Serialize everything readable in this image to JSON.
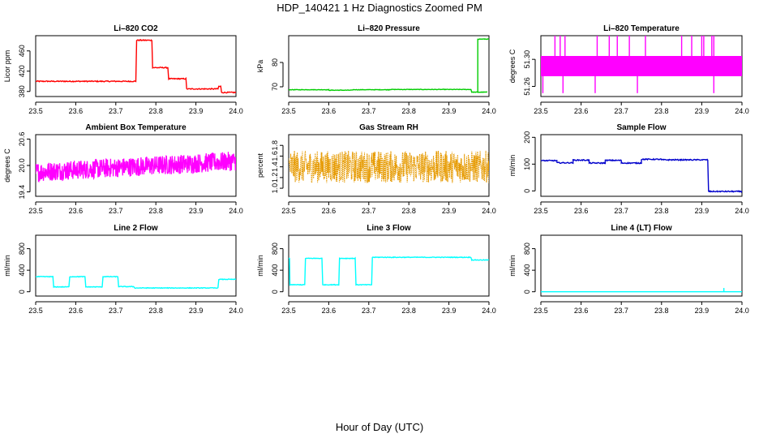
{
  "figure": {
    "title": "HDP_140421  1 Hz Diagnostics Zoomed PM",
    "xlabel": "Hour of Day (UTC)"
  },
  "chart_data": [
    {
      "id": "co2",
      "type": "line",
      "title": "Li–820 CO2",
      "ylabel": "Licor ppm",
      "color": "#ff0000",
      "xlim": [
        23.5,
        24.0
      ],
      "ylim": [
        370,
        490
      ],
      "xticks": [
        23.5,
        23.6,
        23.7,
        23.8,
        23.9,
        24.0
      ],
      "xtick_labels": [
        "23.5",
        "23.6",
        "23.7",
        "23.8",
        "23.9",
        "24.0"
      ],
      "yticks": [
        380,
        420,
        460
      ],
      "ytick_labels": [
        "380",
        "420",
        "460"
      ],
      "noise": 1.0,
      "segments": [
        {
          "x0": 23.5,
          "x1": 23.75,
          "y": 400
        },
        {
          "x0": 23.752,
          "x1": 23.79,
          "y": 481
        },
        {
          "x0": 23.792,
          "x1": 23.83,
          "y": 427
        },
        {
          "x0": 23.832,
          "x1": 23.875,
          "y": 405
        },
        {
          "x0": 23.877,
          "x1": 23.955,
          "y": 385
        },
        {
          "x0": 23.957,
          "x1": 23.962,
          "y": 390
        },
        {
          "x0": 23.964,
          "x1": 24.0,
          "y": 378
        }
      ]
    },
    {
      "id": "pressure",
      "type": "line",
      "title": "Li–820 Pressure",
      "ylabel": "kPa",
      "color": "#00cc00",
      "xlim": [
        23.5,
        24.0
      ],
      "ylim": [
        66,
        91
      ],
      "xticks": [
        23.5,
        23.6,
        23.7,
        23.8,
        23.9,
        24.0
      ],
      "xtick_labels": [
        "23.5",
        "23.6",
        "23.7",
        "23.8",
        "23.9",
        "24.0"
      ],
      "yticks": [
        70,
        80
      ],
      "ytick_labels": [
        "70",
        "80"
      ],
      "noise": 0.1,
      "segments": [
        {
          "x0": 23.5,
          "x1": 23.6,
          "y": 68.8
        },
        {
          "x0": 23.6,
          "x1": 23.66,
          "y": 68.6
        },
        {
          "x0": 23.66,
          "x1": 23.75,
          "y": 68.8
        },
        {
          "x0": 23.75,
          "x1": 23.955,
          "y": 68.9
        },
        {
          "x0": 23.957,
          "x1": 23.995,
          "y": 67.8
        },
        {
          "x0": 23.9955,
          "x1": 23.972,
          "y": 67.8
        },
        {
          "x0": 23.972,
          "x1": 24.0,
          "y": 89.6
        }
      ]
    },
    {
      "id": "licor_temp",
      "type": "line",
      "title": "Li–820 Temperature",
      "ylabel": "degrees C",
      "color": "#ff00ff",
      "xlim": [
        23.5,
        24.0
      ],
      "ylim": [
        51.245,
        51.335
      ],
      "xticks": [
        23.5,
        23.6,
        23.7,
        23.8,
        23.9,
        24.0
      ],
      "xtick_labels": [
        "23.5",
        "23.6",
        "23.7",
        "23.8",
        "23.9",
        "24.0"
      ],
      "yticks": [
        51.26,
        51.3
      ],
      "ytick_labels": [
        "51.26",
        "51.30"
      ],
      "band": {
        "low": 51.275,
        "high": 51.305
      },
      "spikes_up": [
        23.535,
        23.548,
        23.56,
        23.64,
        23.67,
        23.69,
        23.72,
        23.76,
        23.85,
        23.875,
        23.9,
        23.905,
        23.925,
        23.93
      ],
      "spikes_down": [
        23.505,
        23.555,
        23.635,
        23.74,
        23.93
      ]
    },
    {
      "id": "box_temp",
      "type": "line",
      "title": "Ambient Box Temperature",
      "ylabel": "degrees C",
      "color": "#ff00ff",
      "xlim": [
        23.5,
        24.0
      ],
      "ylim": [
        19.3,
        20.7
      ],
      "xticks": [
        23.5,
        23.6,
        23.7,
        23.8,
        23.9,
        24.0
      ],
      "xtick_labels": [
        "23.5",
        "23.6",
        "23.7",
        "23.8",
        "23.9",
        "24.0"
      ],
      "yticks": [
        19.4,
        20.0,
        20.6
      ],
      "ytick_labels": [
        "19.4",
        "20.0",
        "20.6"
      ],
      "noise_band": {
        "start": 19.85,
        "end": 20.1,
        "amp": 0.22
      }
    },
    {
      "id": "rh",
      "type": "scatter",
      "title": "Gas Stream RH",
      "ylabel": "percent",
      "color": "#e69a00",
      "xlim": [
        23.5,
        24.0
      ],
      "ylim": [
        0.85,
        2.0
      ],
      "xticks": [
        23.5,
        23.6,
        23.7,
        23.8,
        23.9,
        24.0
      ],
      "xtick_labels": [
        "23.5",
        "23.6",
        "23.7",
        "23.8",
        "23.9",
        "24.0"
      ],
      "yticks": [
        1.0,
        1.2,
        1.4,
        1.6,
        1.8
      ],
      "ytick_labels": [
        "1.0",
        "1.2",
        "1.4",
        "1.6",
        "1.8"
      ],
      "noise_band": {
        "start": 1.4,
        "end": 1.4,
        "amp": 0.3
      }
    },
    {
      "id": "sample_flow",
      "type": "line",
      "title": "Sample Flow",
      "ylabel": "ml/min",
      "color": "#0000cc",
      "xlim": [
        23.5,
        24.0
      ],
      "ylim": [
        -20,
        210
      ],
      "xticks": [
        23.5,
        23.6,
        23.7,
        23.8,
        23.9,
        24.0
      ],
      "xtick_labels": [
        "23.5",
        "23.6",
        "23.7",
        "23.8",
        "23.9",
        "24.0"
      ],
      "yticks": [
        0,
        100,
        200
      ],
      "ytick_labels": [
        "0",
        "100",
        "200"
      ],
      "noise": 2.0,
      "segments": [
        {
          "x0": 23.5,
          "x1": 23.54,
          "y": 113
        },
        {
          "x0": 23.54,
          "x1": 23.58,
          "y": 105
        },
        {
          "x0": 23.58,
          "x1": 23.62,
          "y": 115
        },
        {
          "x0": 23.62,
          "x1": 23.66,
          "y": 104
        },
        {
          "x0": 23.66,
          "x1": 23.7,
          "y": 114
        },
        {
          "x0": 23.7,
          "x1": 23.75,
          "y": 104
        },
        {
          "x0": 23.75,
          "x1": 23.8,
          "y": 118
        },
        {
          "x0": 23.8,
          "x1": 23.915,
          "y": 116
        },
        {
          "x0": 23.917,
          "x1": 24.0,
          "y": -2
        }
      ]
    },
    {
      "id": "line2",
      "type": "line",
      "title": "Line 2 Flow",
      "ylabel": "ml/min",
      "color": "#00ffff",
      "xlim": [
        23.5,
        24.0
      ],
      "ylim": [
        -80,
        1050
      ],
      "xticks": [
        23.5,
        23.6,
        23.7,
        23.8,
        23.9,
        24.0
      ],
      "xtick_labels": [
        "23.5",
        "23.6",
        "23.7",
        "23.8",
        "23.9",
        "24.0"
      ],
      "yticks": [
        0,
        400,
        800
      ],
      "ytick_labels": [
        "0",
        "400",
        "800"
      ],
      "noise": 6,
      "segments": [
        {
          "x0": 23.5,
          "x1": 23.543,
          "y": 280
        },
        {
          "x0": 23.545,
          "x1": 23.583,
          "y": 90
        },
        {
          "x0": 23.585,
          "x1": 23.623,
          "y": 280
        },
        {
          "x0": 23.625,
          "x1": 23.666,
          "y": 90
        },
        {
          "x0": 23.668,
          "x1": 23.705,
          "y": 280
        },
        {
          "x0": 23.707,
          "x1": 23.745,
          "y": 95
        },
        {
          "x0": 23.747,
          "x1": 23.955,
          "y": 70
        },
        {
          "x0": 23.957,
          "x1": 24.0,
          "y": 230
        }
      ]
    },
    {
      "id": "line3",
      "type": "line",
      "title": "Line 3 Flow",
      "ylabel": "ml/min",
      "color": "#00ffff",
      "xlim": [
        23.5,
        24.0
      ],
      "ylim": [
        -80,
        1050
      ],
      "xticks": [
        23.5,
        23.6,
        23.7,
        23.8,
        23.9,
        24.0
      ],
      "xtick_labels": [
        "23.5",
        "23.6",
        "23.7",
        "23.8",
        "23.9",
        "24.0"
      ],
      "yticks": [
        0,
        400,
        800
      ],
      "ytick_labels": [
        "0",
        "400",
        "800"
      ],
      "noise": 6,
      "segments": [
        {
          "x0": 23.5,
          "x1": 23.502,
          "y": 620
        },
        {
          "x0": 23.503,
          "x1": 23.54,
          "y": 130
        },
        {
          "x0": 23.542,
          "x1": 23.583,
          "y": 620
        },
        {
          "x0": 23.585,
          "x1": 23.625,
          "y": 130
        },
        {
          "x0": 23.627,
          "x1": 23.666,
          "y": 620
        },
        {
          "x0": 23.668,
          "x1": 23.707,
          "y": 130
        },
        {
          "x0": 23.709,
          "x1": 23.955,
          "y": 640
        },
        {
          "x0": 23.957,
          "x1": 24.0,
          "y": 590
        }
      ]
    },
    {
      "id": "line4",
      "type": "line",
      "title": "Line 4 (LT) Flow",
      "ylabel": "ml/min",
      "color": "#00ffff",
      "xlim": [
        23.5,
        24.0
      ],
      "ylim": [
        -80,
        1050
      ],
      "xticks": [
        23.5,
        23.6,
        23.7,
        23.8,
        23.9,
        24.0
      ],
      "xtick_labels": [
        "23.5",
        "23.6",
        "23.7",
        "23.8",
        "23.9",
        "24.0"
      ],
      "yticks": [
        0,
        400,
        800
      ],
      "ytick_labels": [
        "0",
        "400",
        "800"
      ],
      "noise": 0,
      "segments": [
        {
          "x0": 23.5,
          "x1": 24.0,
          "y": 0
        }
      ],
      "spike": {
        "x": 23.955,
        "y": 70
      }
    }
  ]
}
